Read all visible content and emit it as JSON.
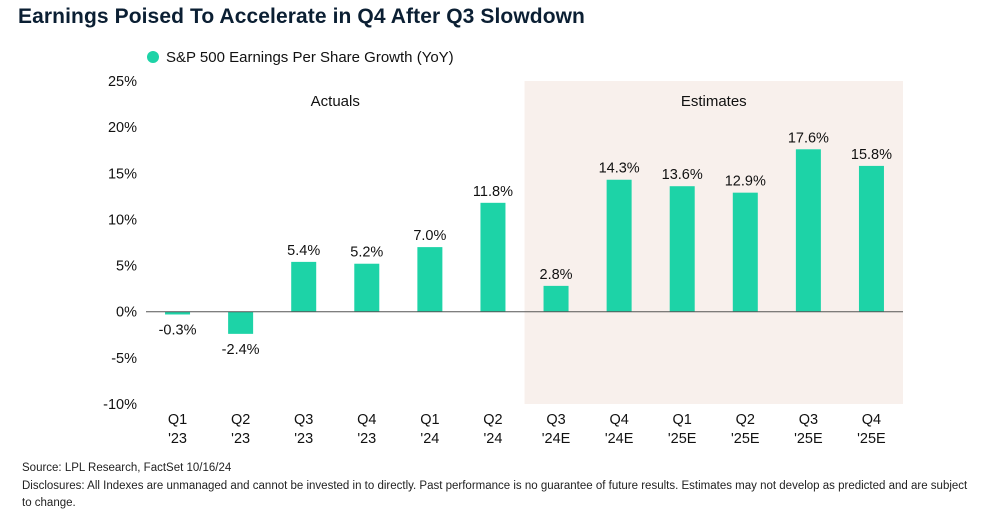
{
  "title": "Earnings Poised To Accelerate in Q4 After Q3 Slowdown",
  "source": "Source: LPL Research, FactSet 10/16/24",
  "disclosure": "Disclosures: All Indexes are unmanaged and cannot be invested in to directly. Past performance is no guarantee of future results. Estimates may not develop as predicted and are subject to change.",
  "colors": {
    "bar": "#1dd3a7",
    "estimates_band": "#f8f0ec",
    "axis": "#555555",
    "text": "#111111"
  },
  "chart_data": {
    "type": "bar",
    "legend": [
      {
        "label": "S&P 500 Earnings Per Share Growth (YoY)",
        "placement": "top-left"
      }
    ],
    "series": [
      {
        "name": "S&P 500 Earnings Per Share Growth (YoY)",
        "values": [
          -0.3,
          -2.4,
          5.4,
          5.2,
          7.0,
          11.8,
          2.8,
          14.3,
          13.6,
          12.9,
          17.6,
          15.8
        ]
      }
    ],
    "categories": [
      [
        "Q1",
        "'23"
      ],
      [
        "Q2",
        "'23"
      ],
      [
        "Q3",
        "'23"
      ],
      [
        "Q4",
        "'23"
      ],
      [
        "Q1",
        "'24"
      ],
      [
        "Q2",
        "'24"
      ],
      [
        "Q3",
        "'24E"
      ],
      [
        "Q4",
        "'24E"
      ],
      [
        "Q1",
        "'25E"
      ],
      [
        "Q2",
        "'25E"
      ],
      [
        "Q3",
        "'25E"
      ],
      [
        "Q4",
        "'25E"
      ]
    ],
    "data_labels": [
      "-0.3%",
      "-2.4%",
      "5.4%",
      "5.2%",
      "7.0%",
      "11.8%",
      "2.8%",
      "14.3%",
      "13.6%",
      "12.9%",
      "17.6%",
      "15.8%"
    ],
    "ylim": [
      -10,
      25
    ],
    "yticks": [
      25,
      20,
      15,
      10,
      5,
      0,
      -5,
      -10
    ],
    "ytick_labels": [
      "25%",
      "20%",
      "15%",
      "10%",
      "5%",
      "0%",
      "-5%",
      "-10%"
    ],
    "regions": [
      {
        "label": "Actuals",
        "start_index": 0,
        "end_index": 5,
        "shaded": false
      },
      {
        "label": "Estimates",
        "start_index": 6,
        "end_index": 11,
        "shaded": true
      }
    ],
    "grid": false
  }
}
